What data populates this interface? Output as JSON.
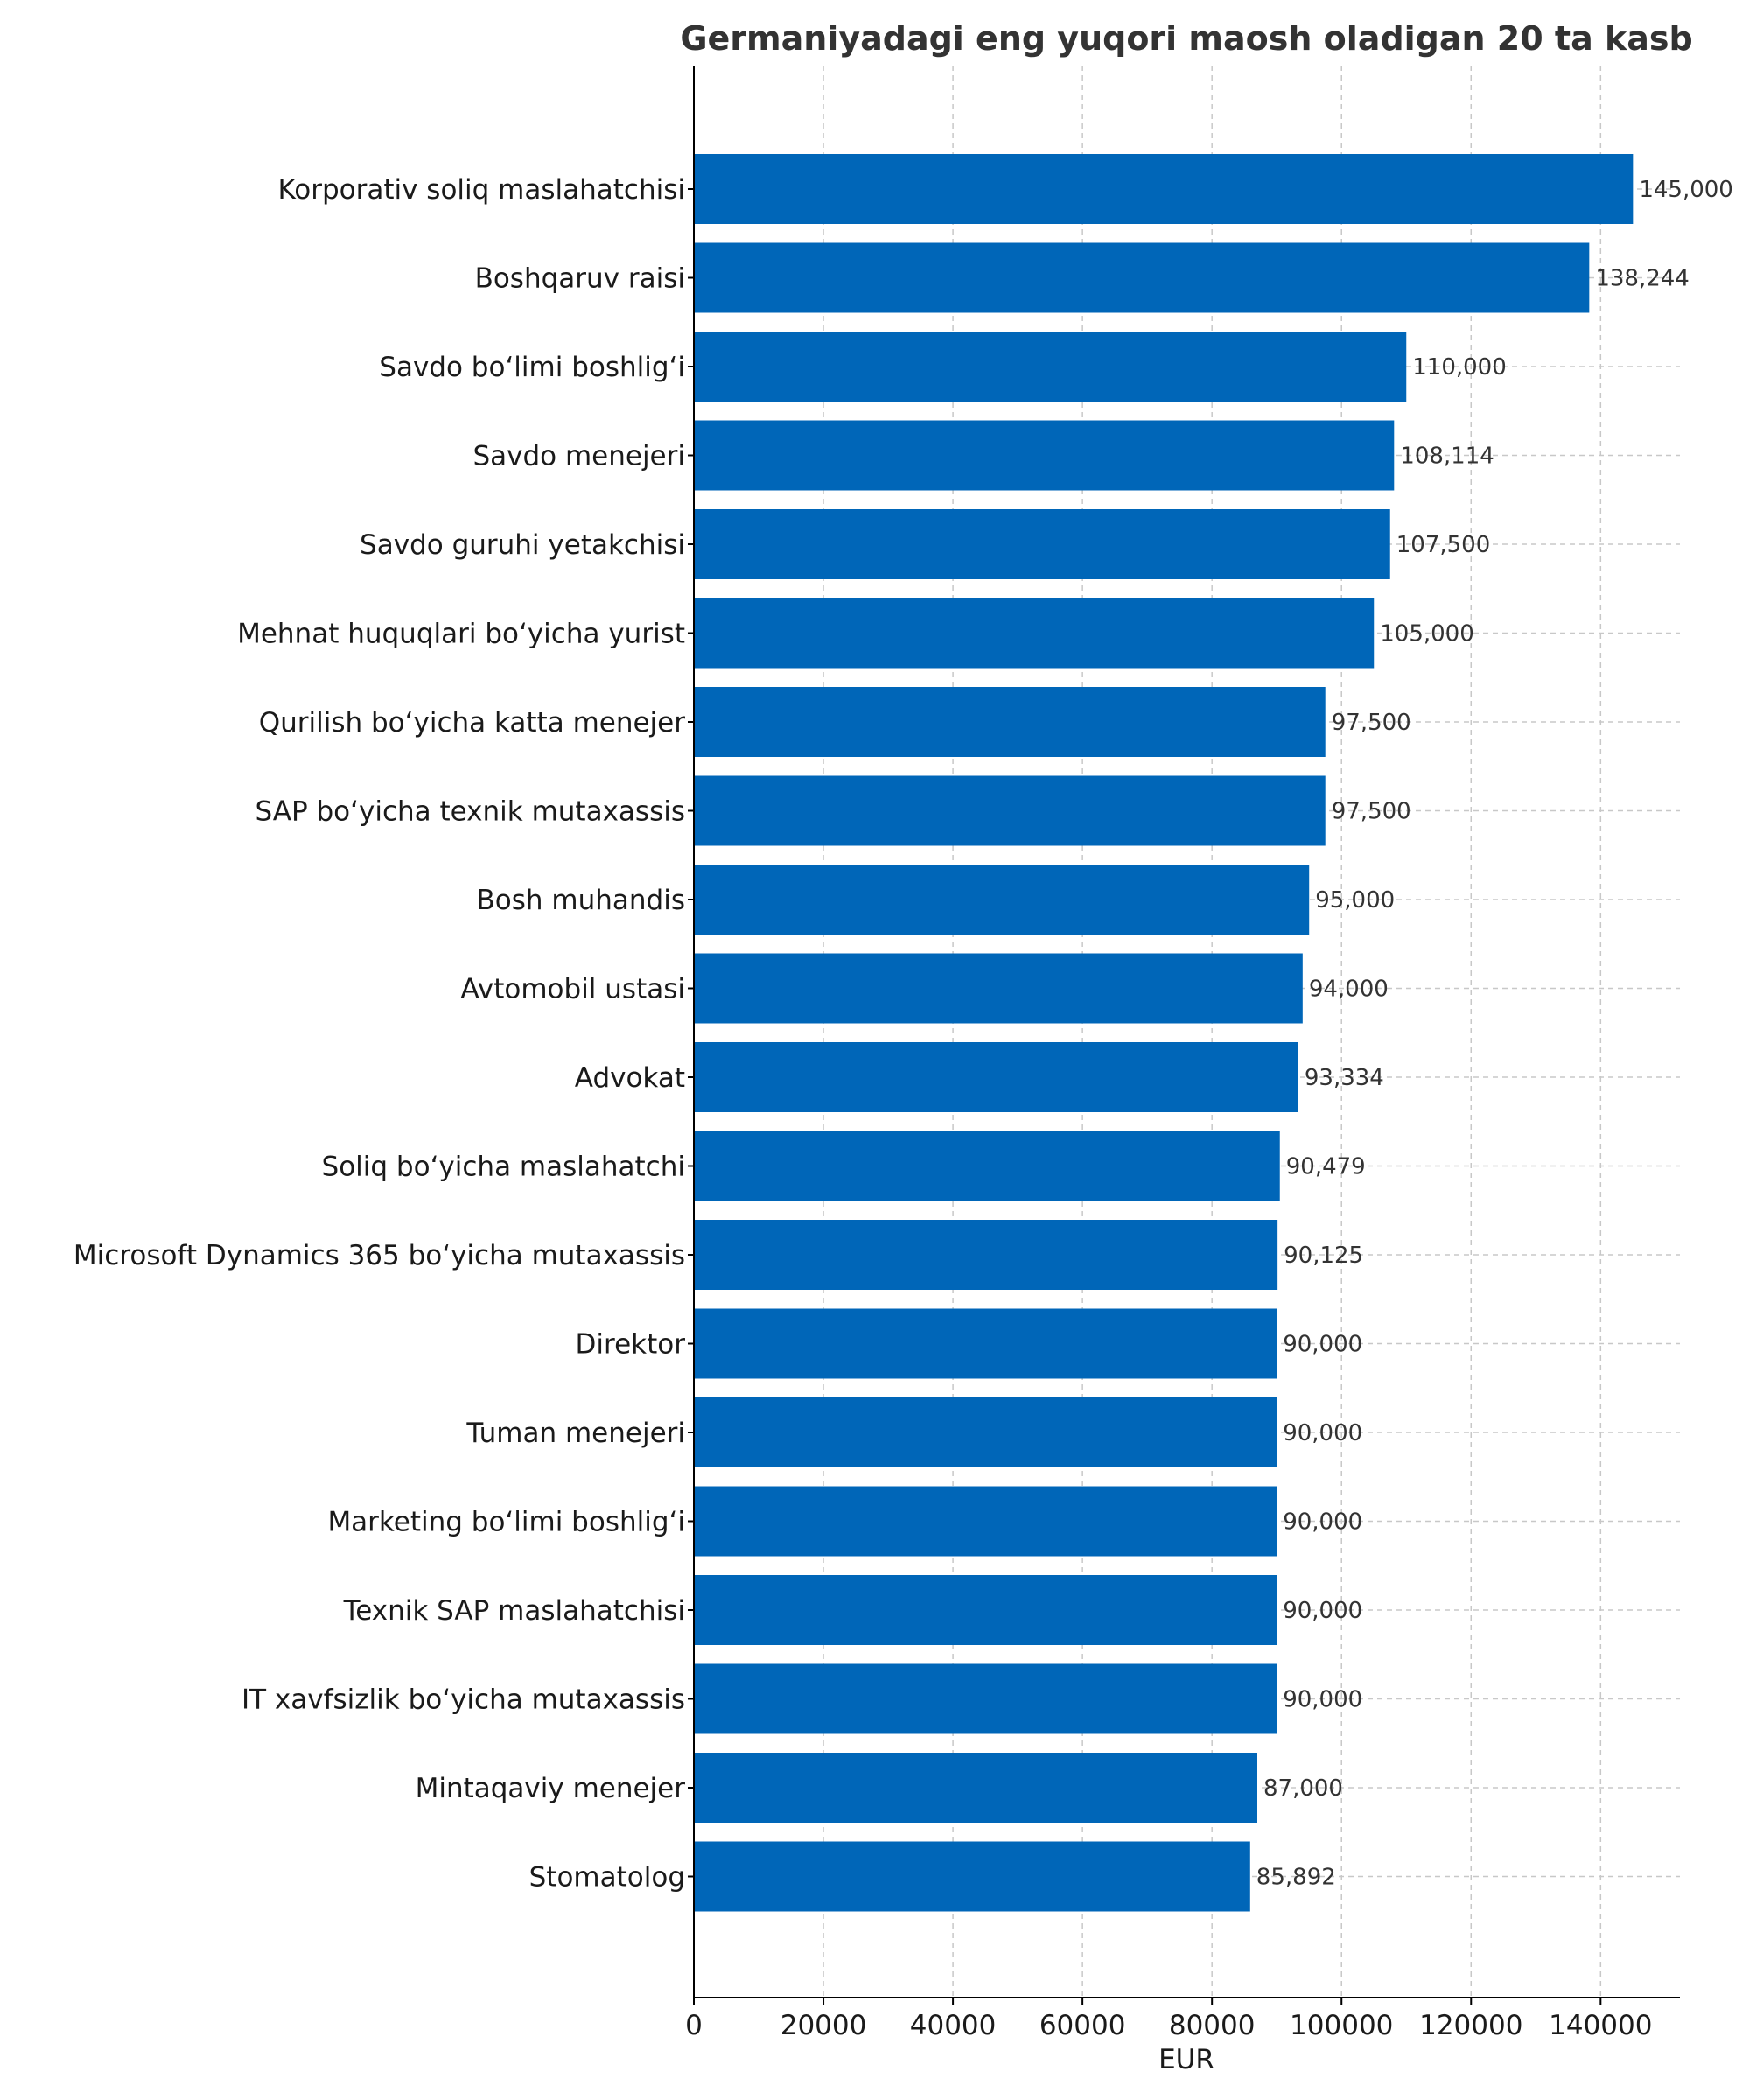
{
  "chart_data": {
    "type": "bar",
    "orientation": "horizontal",
    "title": "Germaniyadagi eng yuqori maosh oladigan 20 ta kasb",
    "xlabel": "EUR",
    "ylabel": "",
    "xlim": [
      0,
      152250
    ],
    "xticks": [
      0,
      20000,
      40000,
      60000,
      80000,
      100000,
      120000,
      140000
    ],
    "xtick_labels": [
      "0",
      "20000",
      "40000",
      "60000",
      "80000",
      "100000",
      "120000",
      "140000"
    ],
    "grid": true,
    "bar_color": "#0066b8",
    "categories": [
      "Korporativ soliq maslahatchisi",
      "Boshqaruv raisi",
      "Savdo boʻlimi boshligʻi",
      "Savdo menejeri",
      "Savdo guruhi yetakchisi",
      "Mehnat huquqlari boʻyicha yurist",
      "Qurilish boʻyicha katta menejer",
      "SAP boʻyicha texnik mutaxassis",
      "Bosh muhandis",
      "Avtomobil ustasi",
      "Advokat",
      "Soliq boʻyicha maslahatchi",
      "Microsoft Dynamics 365 boʻyicha mutaxassis",
      "Direktor",
      "Tuman menejeri",
      "Marketing boʻlimi boshligʻi",
      "Texnik SAP maslahatchisi",
      "IT xavfsizlik boʻyicha mutaxassis",
      "Mintaqaviy menejer",
      "Stomatolog"
    ],
    "values": [
      145000,
      138244,
      110000,
      108114,
      107500,
      105000,
      97500,
      97500,
      95000,
      94000,
      93334,
      90479,
      90125,
      90000,
      90000,
      90000,
      90000,
      90000,
      87000,
      85892
    ],
    "value_labels": [
      "145,000",
      "138,244",
      "110,000",
      "108,114",
      "107,500",
      "105,000",
      "97,500",
      "97,500",
      "95,000",
      "94,000",
      "93,334",
      "90,479",
      "90,125",
      "90,000",
      "90,000",
      "90,000",
      "90,000",
      "90,000",
      "87,000",
      "85,892"
    ]
  }
}
